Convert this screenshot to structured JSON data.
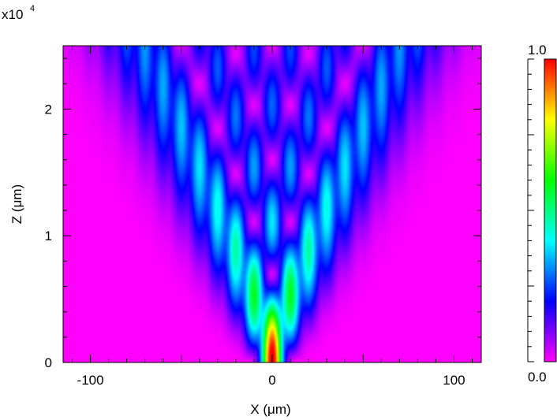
{
  "chart_data": {
    "type": "heatmap",
    "title": "",
    "xlabel": "X (μm)",
    "ylabel": "Z (μm)",
    "y_exponent_label": "x10",
    "y_exponent_power": "4",
    "xlim": [
      -115,
      115
    ],
    "ylim": [
      0,
      25000
    ],
    "x_ticks": [
      {
        "value": -100,
        "label": "-100"
      },
      {
        "value": 0,
        "label": "0"
      },
      {
        "value": 100,
        "label": "100"
      }
    ],
    "y_ticks": [
      {
        "value": 0,
        "label": "0"
      },
      {
        "value": 10000,
        "label": "1"
      },
      {
        "value": 20000,
        "label": "2"
      }
    ],
    "x_minor_step": 10,
    "y_minor_step": 2000,
    "description_of_field": "Waveguide-array light propagation: single-site excitation at X=0, discrete diffraction spreading linearly with Z; waveguide pitch about 10 um",
    "waveguide_pitch": 10,
    "colorbar": {
      "min": 0.0,
      "max": 1.0,
      "min_label": "0.0",
      "max_label": "1.0",
      "colors": [
        "#ff00ff",
        "#0000ff",
        "#00ffff",
        "#00ff00",
        "#ffff00",
        "#ff0000"
      ]
    }
  }
}
